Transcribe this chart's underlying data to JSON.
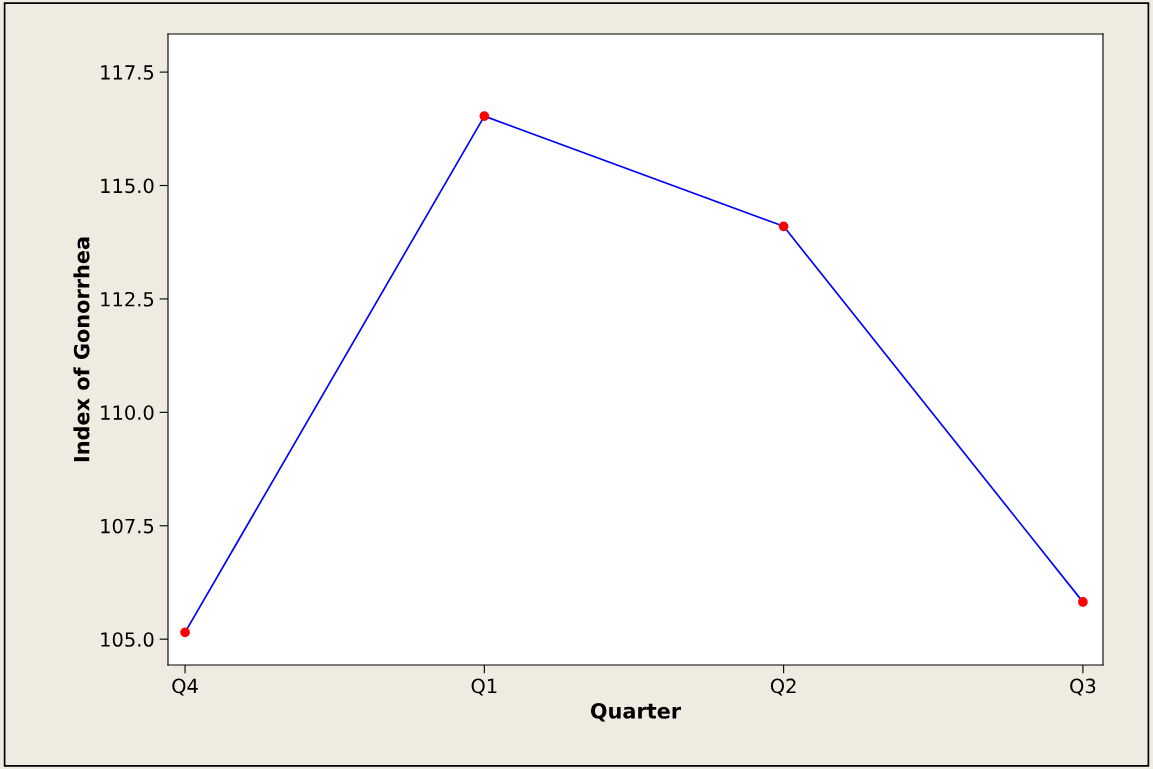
{
  "chart_data": {
    "type": "line",
    "xlabel": "Quarter",
    "ylabel": "Index of Gonorrhea",
    "categories": [
      "Q4",
      "Q1",
      "Q2",
      "Q3"
    ],
    "series": [
      {
        "color": "#0000ff",
        "colors": [
          "#ff0000",
          "#ff0000",
          "#ff0000",
          "#ff0000"
        ],
        "values": [
          105.15,
          116.53,
          114.1,
          105.82
        ]
      }
    ],
    "marker": "circle",
    "line_style": "solid",
    "ylim": [
      104.43,
      118.34
    ],
    "yticks": [
      {
        "value": 105,
        "label": "105.0"
      },
      {
        "value": 107.5,
        "label": "107.5"
      },
      {
        "value": 110,
        "label": "110.0"
      },
      {
        "value": 112.5,
        "label": "112.5"
      },
      {
        "value": 115,
        "label": "115.0"
      },
      {
        "value": 117.5,
        "label": "117.5"
      }
    ],
    "grid": false,
    "legend": false
  }
}
